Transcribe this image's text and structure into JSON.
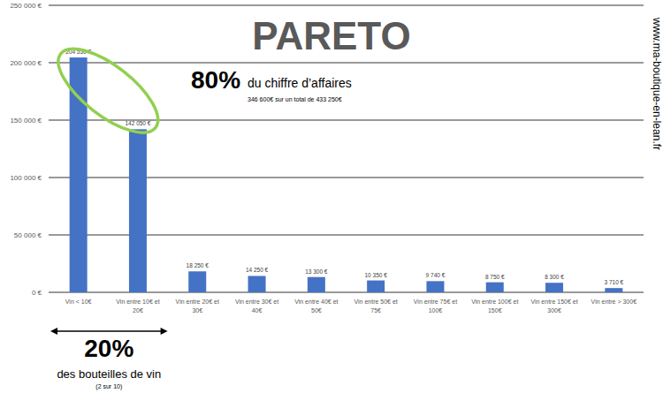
{
  "chart_data": {
    "type": "bar",
    "title": "PARETO",
    "categories": [
      "Vin < 10€",
      "Vin entre 10€ et 20€",
      "Vin entre 20€ et 30€",
      "Vin entre 30€ et 40€",
      "Vin entre 40€ et 50€",
      "Vin entre 50€ et 75€",
      "Vin entre 75€ et 100€",
      "Vin entre 100€ et 150€",
      "Vin entre 150€ et 300€",
      "Vin entre > 300€"
    ],
    "values": [
      204550,
      142050,
      18250,
      14250,
      13300,
      10350,
      9740,
      8750,
      8300,
      3710
    ],
    "value_labels": [
      "204 550 €",
      "142 050 €",
      "18 250 €",
      "14 250 €",
      "13 300 €",
      "10 350 €",
      "9 740 €",
      "8 750 €",
      "8 300 €",
      "3 710 €"
    ],
    "color": "#4472c4",
    "ylim": [
      0,
      250000
    ],
    "yticks": [
      {
        "value": 0,
        "label": "0 €"
      },
      {
        "value": 50000,
        "label": "50 000 €"
      },
      {
        "value": 100000,
        "label": "100 000 €"
      },
      {
        "value": 150000,
        "label": "150 000 €"
      },
      {
        "value": 200000,
        "label": "200 000 €"
      },
      {
        "value": 250000,
        "label": "250 000 €"
      }
    ],
    "grid": true,
    "data_labels": true,
    "annotations": [
      "80%",
      "du chiffre d’affaires",
      "346 600€ sur un total de 433 250€",
      "20%",
      "des bouteilles de vin",
      "(2 sur 10)",
      "www.ma-boutique-en-lean.fr"
    ]
  }
}
